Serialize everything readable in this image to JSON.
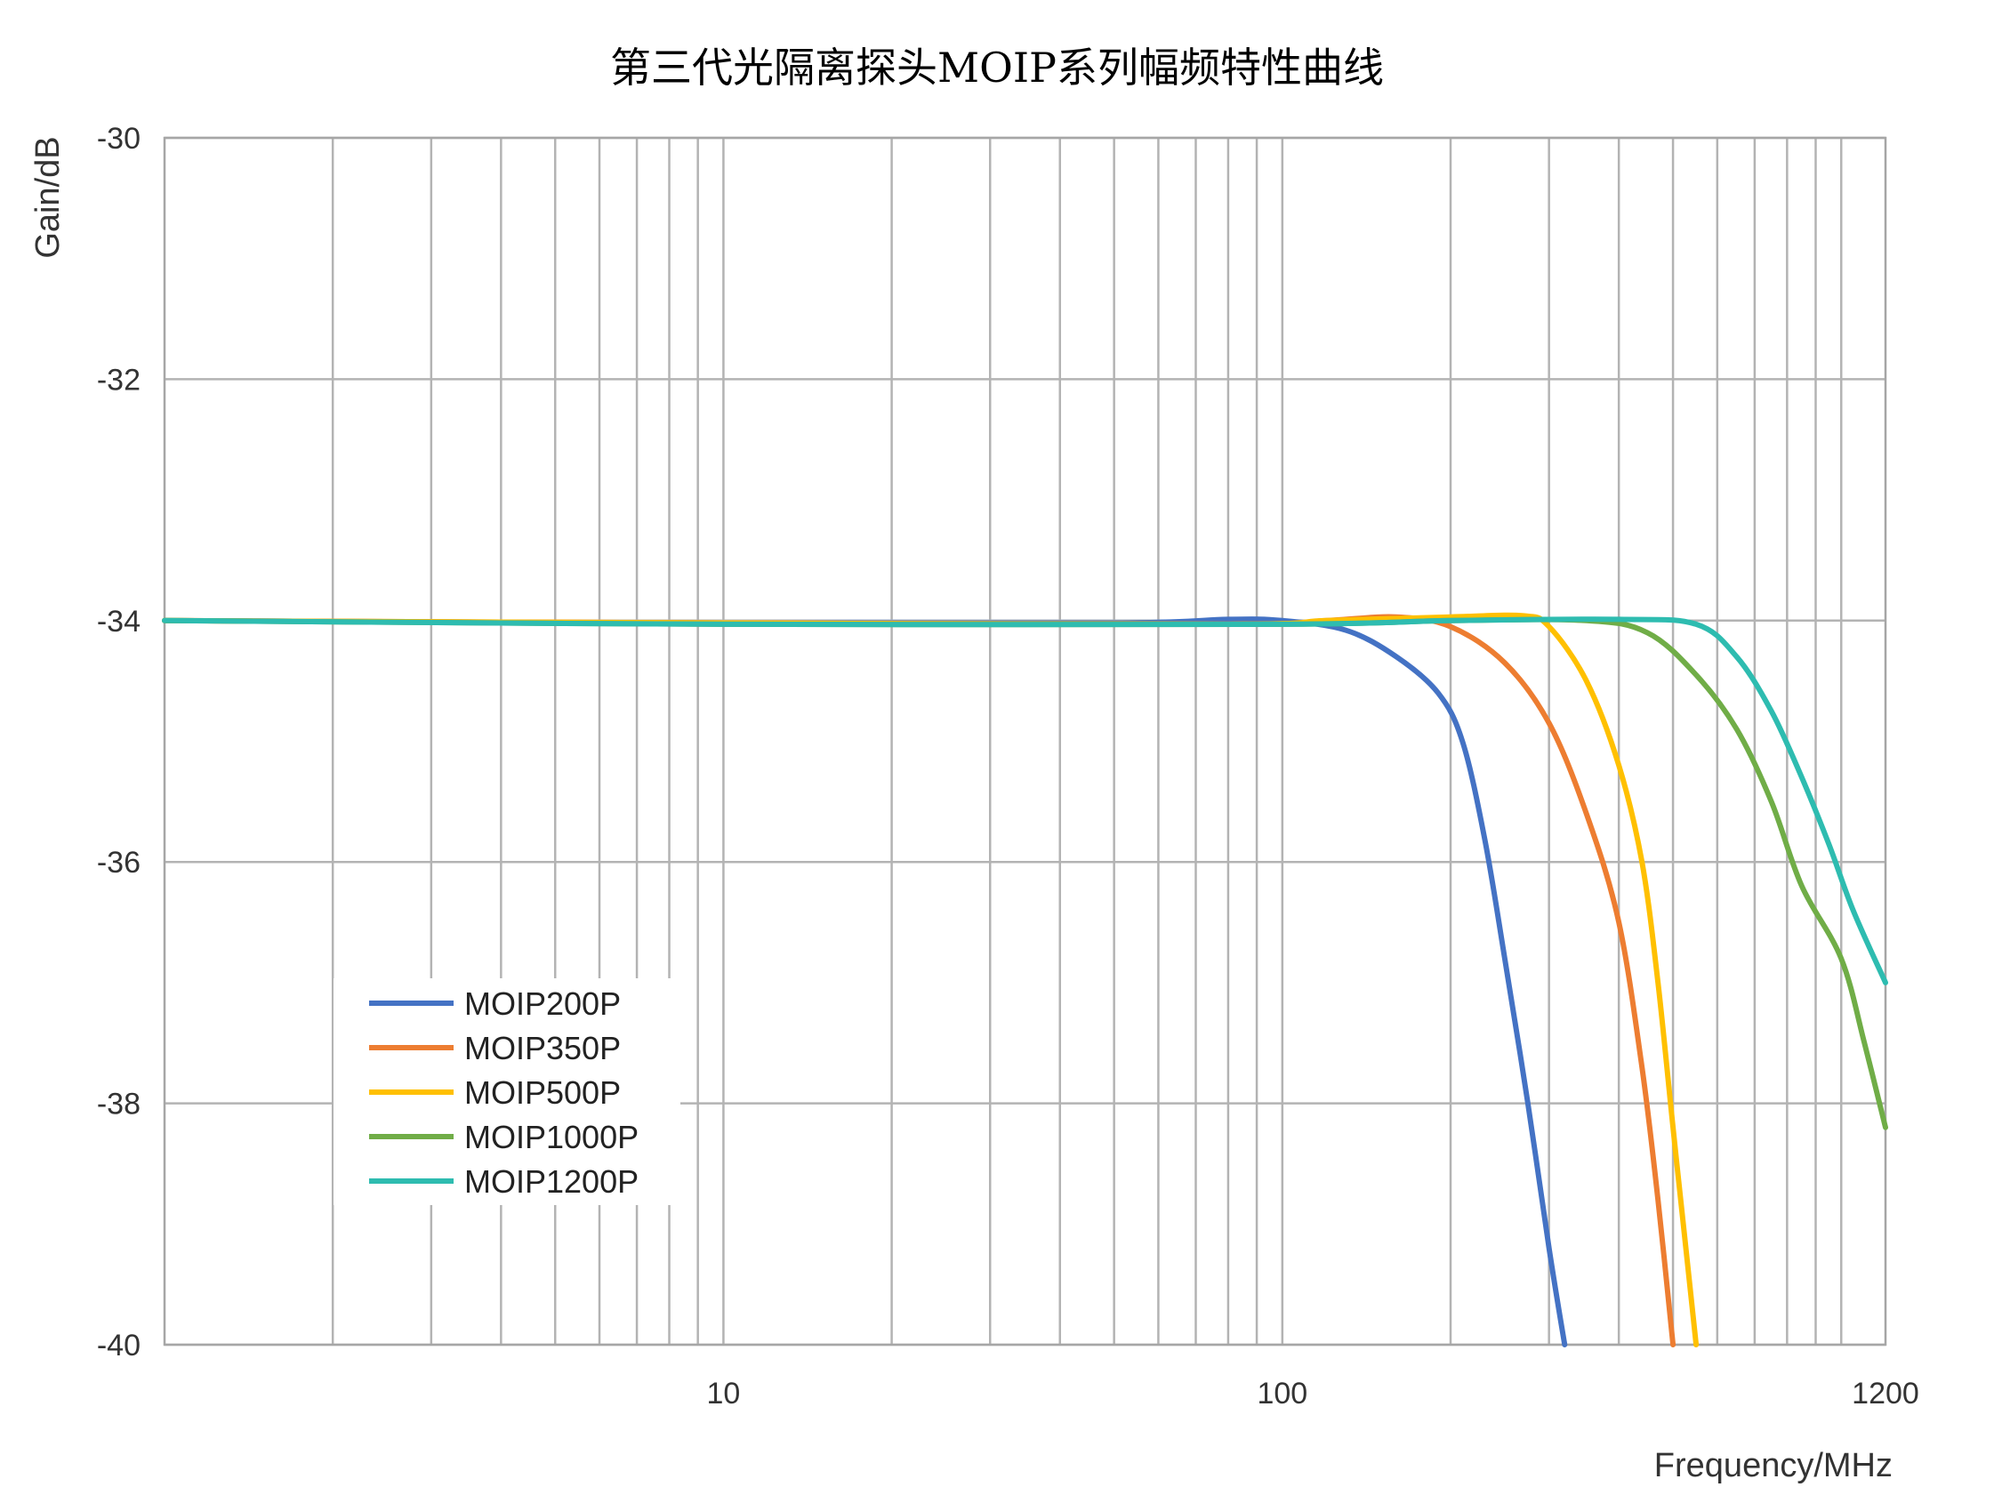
{
  "chart_data": {
    "type": "line",
    "title": "第三代光隔离探头MOIP系列幅频特性曲线",
    "xlabel": "Frequency/MHz",
    "ylabel": "Gain/dB",
    "xscale": "log",
    "xlim": [
      1,
      1200
    ],
    "ylim": [
      -40,
      -30
    ],
    "x_ticks": [
      10,
      100,
      1200
    ],
    "x_tick_labels": [
      "10",
      "100",
      "1200"
    ],
    "y_ticks": [
      -30,
      -32,
      -34,
      -36,
      -38,
      -40
    ],
    "y_tick_labels": [
      "-30",
      "-32",
      "-34",
      "-36",
      "-38",
      "-40"
    ],
    "grid": true,
    "legend_position": "lower-left",
    "series": [
      {
        "name": "MOIP200P",
        "color": "#4472C4",
        "points": [
          [
            1,
            -34.0
          ],
          [
            10,
            -34.02
          ],
          [
            50,
            -34.02
          ],
          [
            80,
            -33.99
          ],
          [
            100,
            -34.0
          ],
          [
            130,
            -34.08
          ],
          [
            160,
            -34.3
          ],
          [
            190,
            -34.6
          ],
          [
            210,
            -35.0
          ],
          [
            230,
            -35.8
          ],
          [
            250,
            -36.8
          ],
          [
            275,
            -38.0
          ],
          [
            300,
            -39.2
          ],
          [
            320,
            -40.0
          ]
        ]
      },
      {
        "name": "MOIP350P",
        "color": "#ED7D31",
        "points": [
          [
            1,
            -34.0
          ],
          [
            10,
            -34.02
          ],
          [
            80,
            -34.03
          ],
          [
            120,
            -34.0
          ],
          [
            160,
            -33.97
          ],
          [
            200,
            -34.05
          ],
          [
            250,
            -34.35
          ],
          [
            300,
            -34.85
          ],
          [
            350,
            -35.6
          ],
          [
            400,
            -36.5
          ],
          [
            440,
            -37.7
          ],
          [
            470,
            -38.8
          ],
          [
            500,
            -40.0
          ]
        ]
      },
      {
        "name": "MOIP500P",
        "color": "#FFC000",
        "points": [
          [
            1,
            -34.0
          ],
          [
            10,
            -34.02
          ],
          [
            80,
            -34.03
          ],
          [
            120,
            -34.0
          ],
          [
            200,
            -33.97
          ],
          [
            270,
            -33.96
          ],
          [
            300,
            -34.05
          ],
          [
            350,
            -34.5
          ],
          [
            400,
            -35.2
          ],
          [
            440,
            -36.0
          ],
          [
            470,
            -37.0
          ],
          [
            500,
            -38.2
          ],
          [
            530,
            -39.3
          ],
          [
            550,
            -40.0
          ]
        ]
      },
      {
        "name": "MOIP1000P",
        "color": "#70AD47",
        "points": [
          [
            1,
            -34.0
          ],
          [
            10,
            -34.03
          ],
          [
            100,
            -34.03
          ],
          [
            200,
            -34.0
          ],
          [
            350,
            -34.0
          ],
          [
            450,
            -34.1
          ],
          [
            550,
            -34.45
          ],
          [
            650,
            -34.9
          ],
          [
            750,
            -35.5
          ],
          [
            850,
            -36.2
          ],
          [
            1000,
            -36.8
          ],
          [
            1100,
            -37.5
          ],
          [
            1200,
            -38.2
          ]
        ]
      },
      {
        "name": "MOIP1200P",
        "color": "#2EBCB0",
        "points": [
          [
            1,
            -34.0
          ],
          [
            10,
            -34.03
          ],
          [
            100,
            -34.03
          ],
          [
            200,
            -34.0
          ],
          [
            400,
            -33.99
          ],
          [
            550,
            -34.03
          ],
          [
            650,
            -34.3
          ],
          [
            750,
            -34.75
          ],
          [
            850,
            -35.3
          ],
          [
            950,
            -35.85
          ],
          [
            1050,
            -36.4
          ],
          [
            1200,
            -37.0
          ]
        ]
      }
    ]
  }
}
